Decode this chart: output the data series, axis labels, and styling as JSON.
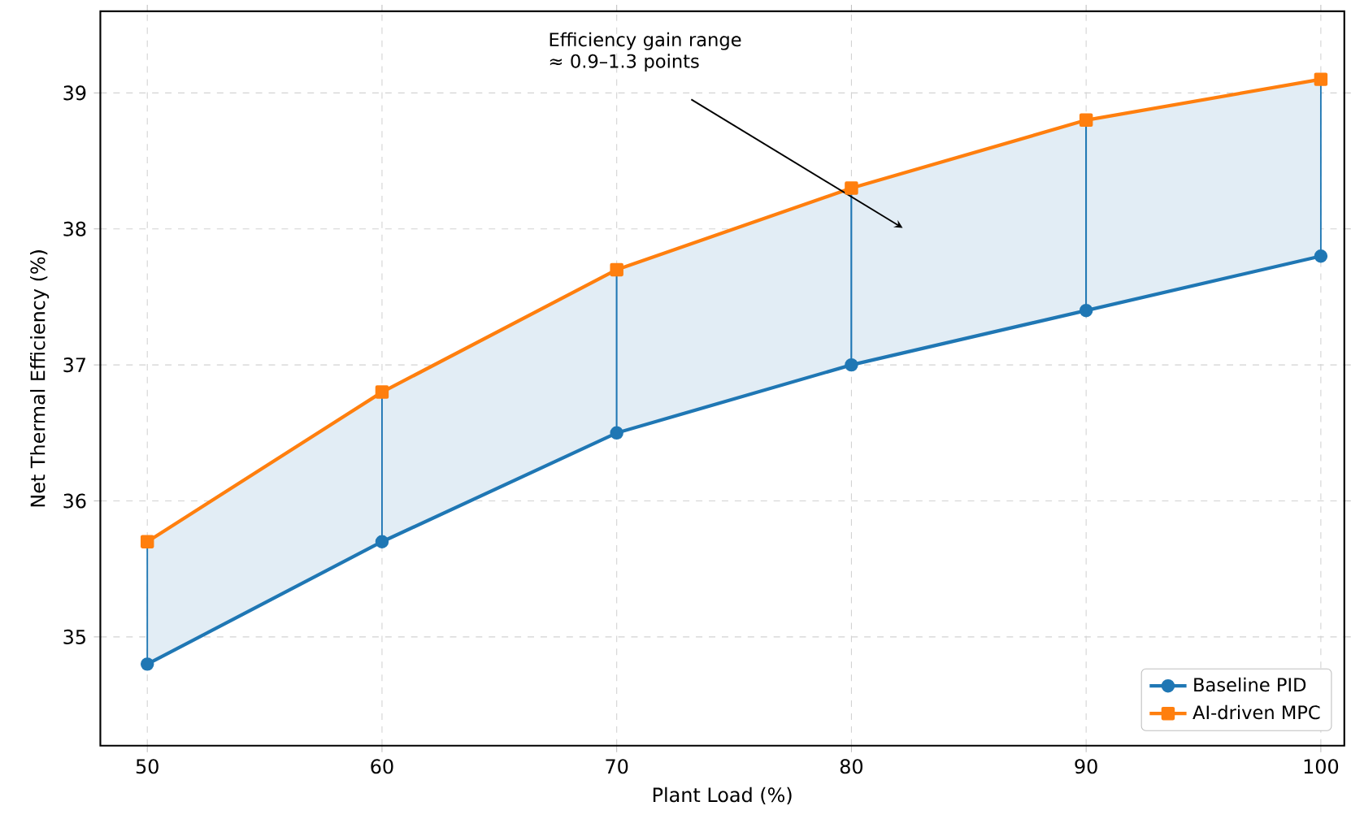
{
  "chart_data": {
    "type": "line",
    "xlabel": "Plant Load (%)",
    "ylabel": "Net Thermal Efficiency (%)",
    "x": [
      50,
      60,
      70,
      80,
      90,
      100
    ],
    "series": [
      {
        "name": "Baseline PID",
        "color": "#1f77b4",
        "marker": "circle",
        "values": [
          34.8,
          35.7,
          36.5,
          37.0,
          37.4,
          37.8
        ],
        "lower": [
          34.8,
          35.7,
          36.5,
          37.0,
          37.4,
          37.8
        ],
        "upper": [
          35.7,
          36.8,
          37.7,
          38.3,
          38.8,
          39.1
        ]
      },
      {
        "name": "AI-driven MPC",
        "color": "#ff7f0e",
        "marker": "square",
        "values": [
          35.7,
          36.8,
          37.7,
          38.3,
          38.8,
          39.1
        ]
      }
    ],
    "xlim": [
      48,
      101
    ],
    "ylim": [
      34.2,
      39.6
    ],
    "xticks": [
      50,
      60,
      70,
      80,
      90,
      100
    ],
    "yticks": [
      35,
      36,
      37,
      38,
      39
    ],
    "grid": true,
    "legend": "bottom right",
    "line_style": "solid",
    "annotations": [
      "Efficiency gain range ≈ 0.9–1.3 points"
    ]
  }
}
